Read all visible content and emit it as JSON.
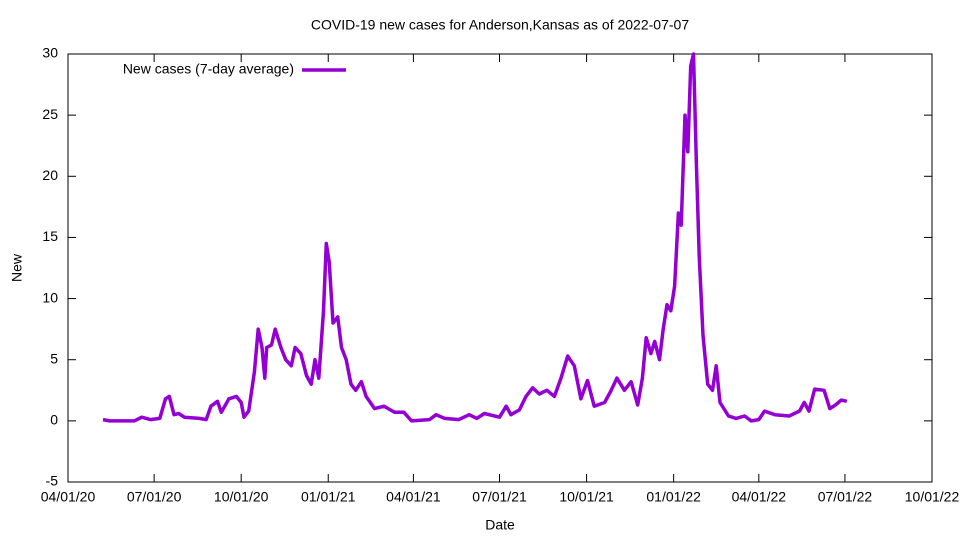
{
  "chart_data": {
    "type": "line",
    "title": "COVID-19 new cases for Anderson,Kansas as of 2022-07-07",
    "x_label": "Date",
    "y_label": "New",
    "legend": "top-left",
    "grid": false,
    "xlim": [
      "2020-04-01",
      "2022-10-01"
    ],
    "xticks": [
      {
        "value": "2020-04-01",
        "label": "04/01/20"
      },
      {
        "value": "2020-07-01",
        "label": "07/01/20"
      },
      {
        "value": "2020-10-01",
        "label": "10/01/20"
      },
      {
        "value": "2021-01-01",
        "label": "01/01/21"
      },
      {
        "value": "2021-04-01",
        "label": "04/01/21"
      },
      {
        "value": "2021-07-01",
        "label": "07/01/21"
      },
      {
        "value": "2021-10-01",
        "label": "10/01/21"
      },
      {
        "value": "2022-01-01",
        "label": "01/01/22"
      },
      {
        "value": "2022-04-01",
        "label": "04/01/22"
      },
      {
        "value": "2022-07-01",
        "label": "07/01/22"
      },
      {
        "value": "2022-10-01",
        "label": "10/01/22"
      }
    ],
    "ylim": [
      -5,
      30
    ],
    "yticks": [
      -5,
      0,
      5,
      10,
      15,
      20,
      25,
      30
    ],
    "x": [
      "2020-05-08",
      "2020-05-15",
      "2020-06-10",
      "2020-06-18",
      "2020-06-27",
      "2020-07-07",
      "2020-07-13",
      "2020-07-17",
      "2020-07-22",
      "2020-07-27",
      "2020-08-02",
      "2020-08-18",
      "2020-08-25",
      "2020-08-30",
      "2020-09-06",
      "2020-09-10",
      "2020-09-18",
      "2020-09-26",
      "2020-10-01",
      "2020-10-04",
      "2020-10-09",
      "2020-10-15",
      "2020-10-19",
      "2020-10-23",
      "2020-10-26",
      "2020-10-28",
      "2020-11-02",
      "2020-11-06",
      "2020-11-12",
      "2020-11-17",
      "2020-11-23",
      "2020-11-27",
      "2020-12-03",
      "2020-12-09",
      "2020-12-14",
      "2020-12-18",
      "2020-12-22",
      "2020-12-27",
      "2020-12-30",
      "2021-01-02",
      "2021-01-06",
      "2021-01-11",
      "2021-01-15",
      "2021-01-20",
      "2021-01-25",
      "2021-01-30",
      "2021-02-05",
      "2021-02-10",
      "2021-02-19",
      "2021-03-01",
      "2021-03-12",
      "2021-03-22",
      "2021-03-30",
      "2021-04-18",
      "2021-04-25",
      "2021-05-04",
      "2021-05-19",
      "2021-05-30",
      "2021-06-07",
      "2021-06-15",
      "2021-07-01",
      "2021-07-08",
      "2021-07-13",
      "2021-07-22",
      "2021-07-29",
      "2021-08-05",
      "2021-08-12",
      "2021-08-20",
      "2021-08-28",
      "2021-09-04",
      "2021-09-11",
      "2021-09-18",
      "2021-09-25",
      "2021-10-02",
      "2021-10-09",
      "2021-10-20",
      "2021-10-27",
      "2021-11-02",
      "2021-11-10",
      "2021-11-17",
      "2021-11-24",
      "2021-11-29",
      "2021-12-03",
      "2021-12-08",
      "2021-12-12",
      "2021-12-17",
      "2021-12-21",
      "2021-12-25",
      "2021-12-29",
      "2022-01-02",
      "2022-01-06",
      "2022-01-09",
      "2022-01-13",
      "2022-01-16",
      "2022-01-19",
      "2022-01-22",
      "2022-01-25",
      "2022-01-28",
      "2022-02-01",
      "2022-02-06",
      "2022-02-11",
      "2022-02-15",
      "2022-02-19",
      "2022-02-28",
      "2022-03-08",
      "2022-03-17",
      "2022-03-24",
      "2022-04-01",
      "2022-04-07",
      "2022-04-18",
      "2022-05-03",
      "2022-05-14",
      "2022-05-19",
      "2022-05-24",
      "2022-05-30",
      "2022-06-09",
      "2022-06-15",
      "2022-06-21",
      "2022-06-27",
      "2022-07-03"
    ],
    "series": [
      {
        "name": "New cases (7-day average)",
        "color": "#9400d3",
        "values": [
          0.1,
          0,
          0,
          0.3,
          0.1,
          0.2,
          1.8,
          2,
          0.5,
          0.6,
          0.3,
          0.2,
          0.1,
          1.2,
          1.6,
          0.7,
          1.8,
          2,
          1.5,
          0.3,
          0.8,
          4,
          7.5,
          6,
          3.5,
          6,
          6.2,
          7.5,
          6,
          5,
          4.5,
          6,
          5.5,
          3.7,
          3,
          5,
          3.5,
          9,
          14.5,
          13,
          8,
          8.5,
          6,
          5,
          3,
          2.5,
          3.2,
          2,
          1,
          1.2,
          0.7,
          0.7,
          0,
          0.1,
          0.5,
          0.2,
          0.1,
          0.5,
          0.2,
          0.6,
          0.3,
          1.2,
          0.5,
          0.9,
          2,
          2.7,
          2.2,
          2.5,
          2,
          3.5,
          5.3,
          4.5,
          1.8,
          3.3,
          1.2,
          1.5,
          2.5,
          3.5,
          2.5,
          3.2,
          1.3,
          3.5,
          6.8,
          5.5,
          6.5,
          5,
          7.5,
          9.5,
          9,
          11,
          17,
          16,
          25,
          22,
          29,
          30,
          21,
          13.5,
          7,
          3,
          2.5,
          4.5,
          1.5,
          0.4,
          0.2,
          0.4,
          0,
          0.1,
          0.8,
          0.5,
          0.4,
          0.8,
          1.5,
          0.8,
          2.6,
          2.5,
          1,
          1.3,
          1.7,
          1.6
        ]
      }
    ]
  }
}
